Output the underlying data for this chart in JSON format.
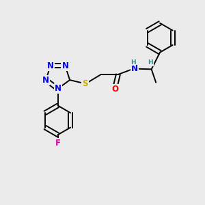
{
  "background_color": "#ebebeb",
  "atom_colors": {
    "N": "#0000ee",
    "O": "#ff0000",
    "S": "#ccaa00",
    "F": "#dd00aa",
    "C": "#000000",
    "H": "#3a8a8a"
  },
  "font_size_atom": 8.5,
  "font_size_small": 6.5,
  "lw": 1.4
}
